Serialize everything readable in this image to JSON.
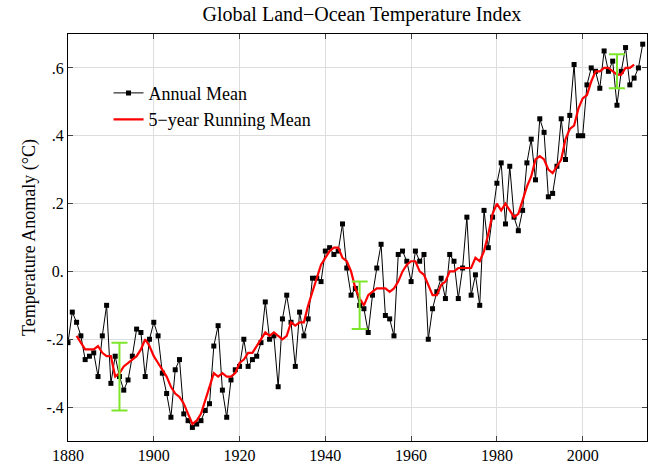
{
  "chart_data": {
    "type": "line",
    "title": "Global Land−Ocean Temperature Index",
    "y_label": "Temperature Anomaly (°C)",
    "x": [
      1880,
      1881,
      1882,
      1883,
      1884,
      1885,
      1886,
      1887,
      1888,
      1889,
      1890,
      1891,
      1892,
      1893,
      1894,
      1895,
      1896,
      1897,
      1898,
      1899,
      1900,
      1901,
      1902,
      1903,
      1904,
      1905,
      1906,
      1907,
      1908,
      1909,
      1910,
      1911,
      1912,
      1913,
      1914,
      1915,
      1916,
      1917,
      1918,
      1919,
      1920,
      1921,
      1922,
      1923,
      1924,
      1925,
      1926,
      1927,
      1928,
      1929,
      1930,
      1931,
      1932,
      1933,
      1934,
      1935,
      1936,
      1937,
      1938,
      1939,
      1940,
      1941,
      1942,
      1943,
      1944,
      1945,
      1946,
      1947,
      1948,
      1949,
      1950,
      1951,
      1952,
      1953,
      1954,
      1955,
      1956,
      1957,
      1958,
      1959,
      1960,
      1961,
      1962,
      1963,
      1964,
      1965,
      1966,
      1967,
      1968,
      1969,
      1970,
      1971,
      1972,
      1973,
      1974,
      1975,
      1976,
      1977,
      1978,
      1979,
      1980,
      1981,
      1982,
      1983,
      1984,
      1985,
      1986,
      1987,
      1988,
      1989,
      1990,
      1991,
      1992,
      1993,
      1994,
      1995,
      1996,
      1997,
      1998,
      1999,
      2000,
      2001,
      2002,
      2003,
      2004,
      2005,
      2006,
      2007,
      2008,
      2009,
      2010,
      2011,
      2012,
      2013,
      2014
    ],
    "series": [
      {
        "name": "Annual Mean",
        "color": "#000000",
        "marker": "square",
        "line_style": "solid",
        "values": [
          -0.21,
          -0.12,
          -0.15,
          -0.19,
          -0.26,
          -0.25,
          -0.24,
          -0.31,
          -0.19,
          -0.1,
          -0.33,
          -0.25,
          -0.31,
          -0.35,
          -0.32,
          -0.25,
          -0.17,
          -0.18,
          -0.31,
          -0.2,
          -0.15,
          -0.19,
          -0.3,
          -0.36,
          -0.43,
          -0.29,
          -0.26,
          -0.42,
          -0.44,
          -0.46,
          -0.45,
          -0.44,
          -0.41,
          -0.39,
          -0.22,
          -0.16,
          -0.35,
          -0.43,
          -0.32,
          -0.29,
          -0.28,
          -0.2,
          -0.28,
          -0.26,
          -0.25,
          -0.21,
          -0.09,
          -0.2,
          -0.19,
          -0.34,
          -0.14,
          -0.07,
          -0.15,
          -0.28,
          -0.12,
          -0.19,
          -0.14,
          -0.02,
          -0.02,
          -0.03,
          0.06,
          0.07,
          0.05,
          0.06,
          0.14,
          0.01,
          -0.07,
          -0.05,
          -0.1,
          -0.11,
          -0.18,
          -0.07,
          0.01,
          0.08,
          -0.13,
          -0.14,
          -0.19,
          0.05,
          0.06,
          0.03,
          -0.03,
          0.06,
          0.03,
          0.05,
          -0.2,
          -0.11,
          -0.06,
          -0.02,
          -0.08,
          0.05,
          0.03,
          -0.08,
          0.01,
          0.16,
          -0.07,
          -0.01,
          -0.1,
          0.18,
          0.07,
          0.16,
          0.26,
          0.32,
          0.14,
          0.31,
          0.16,
          0.12,
          0.18,
          0.32,
          0.39,
          0.27,
          0.45,
          0.41,
          0.22,
          0.23,
          0.31,
          0.45,
          0.33,
          0.46,
          0.61,
          0.4,
          0.4,
          0.55,
          0.6,
          0.59,
          0.54,
          0.65,
          0.59,
          0.62,
          0.49,
          0.59,
          0.66,
          0.55,
          0.57,
          0.6,
          0.67
        ]
      },
      {
        "name": "5−year Running Mean",
        "color": "#ff0000",
        "line_style": "solid",
        "values": [
          null,
          null,
          -0.19,
          -0.21,
          -0.23,
          -0.23,
          -0.23,
          -0.22,
          -0.24,
          -0.25,
          -0.25,
          -0.31,
          -0.3,
          -0.28,
          -0.27,
          -0.26,
          -0.25,
          -0.23,
          -0.2,
          -0.22,
          -0.25,
          -0.27,
          -0.29,
          -0.31,
          -0.34,
          -0.36,
          -0.37,
          -0.39,
          -0.42,
          -0.45,
          -0.44,
          -0.42,
          -0.38,
          -0.34,
          -0.3,
          -0.31,
          -0.3,
          -0.31,
          -0.31,
          -0.3,
          -0.27,
          -0.26,
          -0.24,
          -0.24,
          -0.22,
          -0.2,
          -0.18,
          -0.19,
          -0.18,
          -0.19,
          -0.2,
          -0.19,
          -0.15,
          -0.16,
          -0.15,
          -0.15,
          -0.1,
          -0.06,
          -0.02,
          0.02,
          0.04,
          0.06,
          0.07,
          0.07,
          0.04,
          0.03,
          0.0,
          -0.05,
          -0.08,
          -0.1,
          -0.07,
          -0.06,
          -0.05,
          -0.05,
          -0.05,
          -0.06,
          -0.05,
          -0.03,
          0.0,
          0.02,
          0.03,
          0.03,
          0.0,
          -0.01,
          -0.04,
          -0.07,
          -0.07,
          -0.04,
          -0.03,
          0.0,
          0.0,
          0.01,
          0.01,
          0.01,
          0.01,
          0.04,
          0.03,
          0.06,
          0.11,
          0.17,
          0.2,
          0.18,
          0.2,
          0.18,
          0.16,
          0.17,
          0.21,
          0.25,
          0.28,
          0.33,
          0.34,
          0.33,
          0.3,
          0.29,
          0.31,
          0.33,
          0.39,
          0.42,
          0.43,
          0.48,
          0.51,
          0.52,
          0.56,
          0.59,
          0.59,
          0.6,
          0.6,
          0.59,
          0.58,
          0.58,
          0.6,
          0.6,
          0.61,
          null,
          null
        ]
      }
    ],
    "error_bars": {
      "color": "#7ee62a",
      "x": [
        1892,
        1948,
        2008
      ],
      "values": [
        -0.31,
        -0.1,
        0.59
      ],
      "errors": [
        0.1,
        0.07,
        0.05
      ]
    },
    "xlim": [
      1880,
      2015
    ],
    "xticks": [
      1880,
      1900,
      1920,
      1940,
      1960,
      1980,
      2000
    ],
    "ylim": [
      -0.5,
      0.7
    ],
    "yticks": [
      {
        "value": -0.4,
        "label": "-.4"
      },
      {
        "value": -0.2,
        "label": "-.2"
      },
      {
        "value": 0,
        "label": "0."
      },
      {
        "value": 0.2,
        "label": ".2"
      },
      {
        "value": 0.4,
        "label": ".4"
      },
      {
        "value": 0.6,
        "label": ".6"
      }
    ],
    "grid": true,
    "legend": "upper left"
  }
}
